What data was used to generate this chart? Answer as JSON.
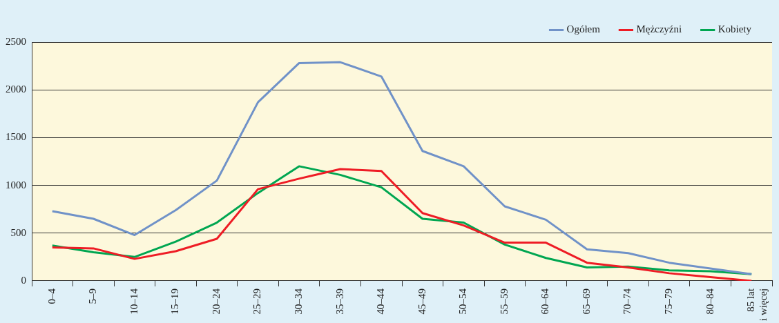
{
  "chart_data": {
    "type": "line",
    "categories": [
      "0–4",
      "5–9",
      "10–14",
      "15–19",
      "20–24",
      "25–29",
      "30–34",
      "35–39",
      "40–44",
      "45–49",
      "50–54",
      "55–59",
      "60–64",
      "65–69",
      "70–74",
      "75–79",
      "80–84",
      "85 lat\ni więcej"
    ],
    "series": [
      {
        "name": "Ogółem",
        "color": "#7092c8",
        "values": [
          730,
          650,
          480,
          740,
          1050,
          1870,
          2280,
          2290,
          2140,
          1360,
          1200,
          780,
          640,
          330,
          290,
          190,
          130,
          70
        ]
      },
      {
        "name": "Mężczyźni",
        "color": "#ee1c25",
        "values": [
          350,
          340,
          230,
          310,
          440,
          960,
          1070,
          1170,
          1150,
          710,
          580,
          400,
          400,
          190,
          140,
          80,
          40,
          0
        ]
      },
      {
        "name": "Kobiety",
        "color": "#00a651",
        "values": [
          370,
          300,
          250,
          410,
          610,
          920,
          1200,
          1110,
          980,
          650,
          610,
          380,
          240,
          140,
          150,
          110,
          100,
          70
        ]
      }
    ],
    "ylim": [
      0,
      2500
    ],
    "yticks": [
      0,
      500,
      1000,
      1500,
      2000,
      2500
    ],
    "grid": "y",
    "legend": "top right",
    "marker": "none",
    "line_style": "solid"
  }
}
